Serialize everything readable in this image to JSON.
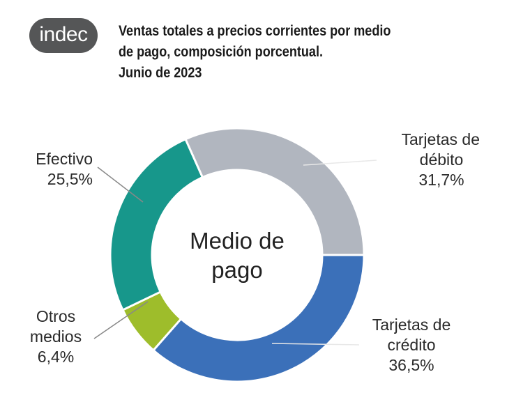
{
  "logo": "indec",
  "chart_data": {
    "type": "pie",
    "donut": true,
    "title": [
      "Ventas totales a precios corrientes por medio",
      "de pago, composición porcentual.",
      "Junio de 2023"
    ],
    "center_label": [
      "Medio de",
      "pago"
    ],
    "start_angle_deg": -24,
    "direction": "clockwise",
    "slices": [
      {
        "name": "Tarjetas de débito",
        "label_lines": [
          "Tarjetas de",
          "débito"
        ],
        "value": 31.7,
        "value_label": "31,7%",
        "color": "#b1b6bf"
      },
      {
        "name": "Tarjetas de crédito",
        "label_lines": [
          "Tarjetas de",
          "crédito"
        ],
        "value": 36.5,
        "value_label": "36,5%",
        "color": "#3b70b9"
      },
      {
        "name": "Otros medios",
        "label_lines": [
          "Otros",
          "medios"
        ],
        "value": 6.4,
        "value_label": "6,4%",
        "color": "#9ebd2b"
      },
      {
        "name": "Efectivo",
        "label_lines": [
          "Efectivo"
        ],
        "value": 25.5,
        "value_label": "25,5%",
        "color": "#17978b"
      }
    ]
  }
}
